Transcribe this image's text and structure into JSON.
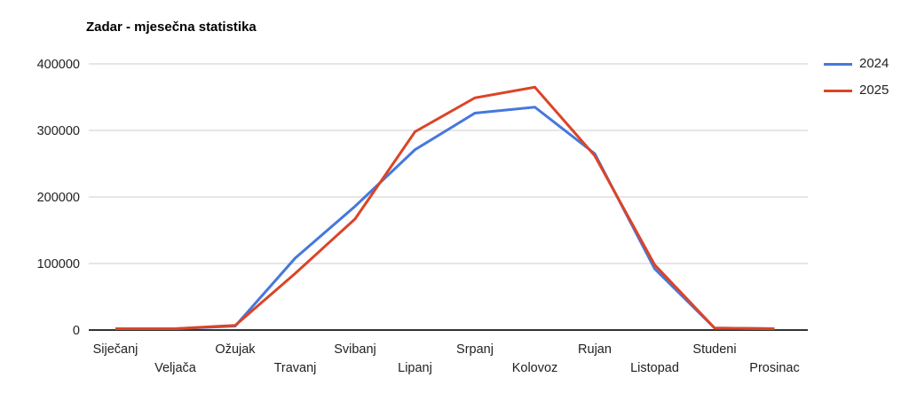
{
  "chart": {
    "title": "Zadar - mjesečna statistika"
  },
  "chart_data": {
    "type": "line",
    "title": "Zadar - mjesečna statistika",
    "categories": [
      "Siječanj",
      "Veljača",
      "Ožujak",
      "Travanj",
      "Svibanj",
      "Lipanj",
      "Srpanj",
      "Kolovoz",
      "Rujan",
      "Listopad",
      "Studeni",
      "Prosinac"
    ],
    "series": [
      {
        "name": "2024",
        "color": "#4678DC",
        "values": [
          2000,
          2000,
          6000,
          108000,
          186000,
          271000,
          326000,
          335000,
          265000,
          92000,
          3000,
          2000
        ]
      },
      {
        "name": "2025",
        "color": "#DB4427",
        "values": [
          2000,
          2000,
          7000,
          85000,
          167000,
          298000,
          349000,
          365000,
          262000,
          98000,
          3000,
          2000
        ]
      }
    ],
    "xlabel": "",
    "ylabel": "",
    "ylim": [
      0,
      400000
    ],
    "yticks": [
      0,
      100000,
      200000,
      300000,
      400000
    ],
    "grid": true,
    "legend_position": "right",
    "colors": {
      "gridline": "#e6e6e6",
      "baseline": "#333333",
      "tick_text": "#222222",
      "background": "#ffffff"
    }
  }
}
